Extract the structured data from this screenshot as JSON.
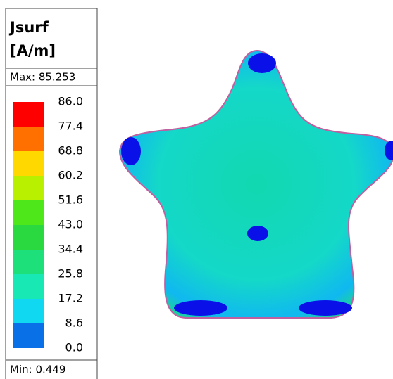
{
  "legend": {
    "title": [
      "Jsurf",
      "[A/m]"
    ],
    "max": "Max: 85.253",
    "min": "Min:  0.449",
    "labels": [
      "86.0",
      "77.4",
      "68.8",
      "60.2",
      "51.6",
      "43.0",
      "34.4",
      "25.8",
      "17.2",
      "8.6",
      "0.0"
    ],
    "colors": [
      "#ff0000",
      "#ff7000",
      "#ffd800",
      "#b8f000",
      "#4ee81a",
      "#2ad840",
      "#1ee07a",
      "#18e8b4",
      "#10d8f0",
      "#0a70e8",
      "#0000f8"
    ]
  }
}
